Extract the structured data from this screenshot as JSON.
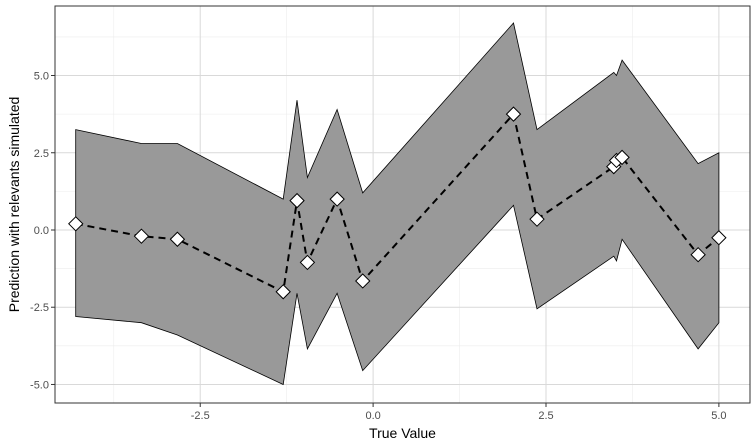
{
  "chart_data": {
    "type": "line",
    "xlabel": "True Value",
    "ylabel": "Prediction with relevants simulated",
    "xlim": [
      -4.6,
      5.45
    ],
    "ylim": [
      -5.6,
      7.25
    ],
    "x_ticks": [
      -2.5,
      0.0,
      2.5,
      5.0
    ],
    "x_tick_labels": [
      "-2.5",
      "0.0",
      "2.5",
      "5.0"
    ],
    "y_ticks": [
      -5.0,
      -2.5,
      0.0,
      2.5,
      5.0
    ],
    "y_tick_labels": [
      "-5.0",
      "-2.5",
      "0.0",
      "2.5",
      "5.0"
    ],
    "grid": true,
    "legend": "none",
    "colors": {
      "ribbon_fill": "#999999",
      "ribbon_outline": "#000000",
      "line": "#000000",
      "marker_fill": "#ffffff",
      "grid_major": "#d9d9d9",
      "grid_minor": "#ececec",
      "panel_border": "#333333"
    },
    "series": [
      {
        "style": "dashed line with diamond markers",
        "x": [
          -4.3,
          -3.35,
          -2.83,
          -1.3,
          -1.1,
          -0.95,
          -0.52,
          -0.15,
          2.03,
          2.37,
          3.48,
          3.52,
          3.6,
          4.7,
          5.0
        ],
        "y": [
          0.2,
          -0.2,
          -0.3,
          -2.0,
          0.95,
          -1.05,
          1.0,
          -1.65,
          3.75,
          0.35,
          2.05,
          2.25,
          2.35,
          -0.8,
          -0.25
        ]
      }
    ],
    "ribbon": {
      "x": [
        -4.3,
        -3.35,
        -2.83,
        -1.3,
        -1.1,
        -0.95,
        -0.52,
        -0.15,
        2.03,
        2.37,
        3.48,
        3.52,
        3.6,
        4.7,
        5.0
      ],
      "upper": [
        3.25,
        2.8,
        2.8,
        1.0,
        4.2,
        1.7,
        3.9,
        1.2,
        6.7,
        3.25,
        5.1,
        5.0,
        5.5,
        2.15,
        2.5
      ],
      "lower": [
        -2.8,
        -3.0,
        -3.4,
        -5.0,
        -2.05,
        -3.85,
        -2.05,
        -4.55,
        0.8,
        -2.55,
        -0.85,
        -1.0,
        -0.3,
        -3.85,
        -3.0
      ]
    }
  }
}
